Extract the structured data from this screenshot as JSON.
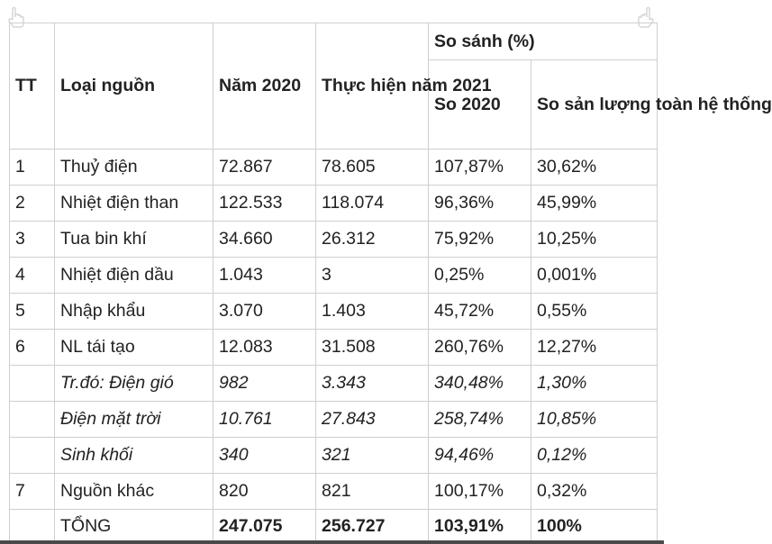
{
  "headers": {
    "tt": "TT",
    "source": "Loại nguồn",
    "y2020": "Năm 2020",
    "y2021": "Thực hiện năm 2021",
    "compare": "So sánh (%)",
    "vs2020": "So 2020",
    "share": "So sản lượng toàn hệ thống"
  },
  "rows": [
    {
      "tt": "1",
      "source": "Thuỷ điện",
      "y2020": "72.867",
      "y2021": "78.605",
      "vs2020": "107,87%",
      "share": "30,62%",
      "italic": false
    },
    {
      "tt": "2",
      "source": "Nhiệt điện than",
      "y2020": "122.533",
      "y2021": "118.074",
      "vs2020": "96,36%",
      "share": "45,99%",
      "italic": false
    },
    {
      "tt": "3",
      "source": "Tua bin khí",
      "y2020": "34.660",
      "y2021": "26.312",
      "vs2020": "75,92%",
      "share": "10,25%",
      "italic": false
    },
    {
      "tt": "4",
      "source": "Nhiệt điện dầu",
      "y2020": "1.043",
      "y2021": "3",
      "vs2020": "0,25%",
      "share": "0,001%",
      "italic": false
    },
    {
      "tt": "5",
      "source": "Nhập khẩu",
      "y2020": "3.070",
      "y2021": "1.403",
      "vs2020": "45,72%",
      "share": "0,55%",
      "italic": false
    },
    {
      "tt": "6",
      "source": "NL tái tạo",
      "y2020": "12.083",
      "y2021": "31.508",
      "vs2020": "260,76%",
      "share": "12,27%",
      "italic": false
    },
    {
      "tt": "",
      "source": "Tr.đó: Điện gió",
      "y2020": "982",
      "y2021": "3.343",
      "vs2020": "340,48%",
      "share": "1,30%",
      "italic": true
    },
    {
      "tt": "",
      "source": "Điện mặt trời",
      "y2020": "10.761",
      "y2021": "27.843",
      "vs2020": "258,74%",
      "share": "10,85%",
      "italic": true
    },
    {
      "tt": "",
      "source": "Sinh khối",
      "y2020": "340",
      "y2021": "321",
      "vs2020": "94,46%",
      "share": "0,12%",
      "italic": true
    },
    {
      "tt": "7",
      "source": "Nguồn khác",
      "y2020": "820",
      "y2021": "821",
      "vs2020": "100,17%",
      "share": "0,32%",
      "italic": false
    }
  ],
  "total": {
    "source": "TỔNG",
    "y2020": "247.075",
    "y2021": "256.727",
    "vs2020": "103,91%",
    "share": "100%"
  }
}
